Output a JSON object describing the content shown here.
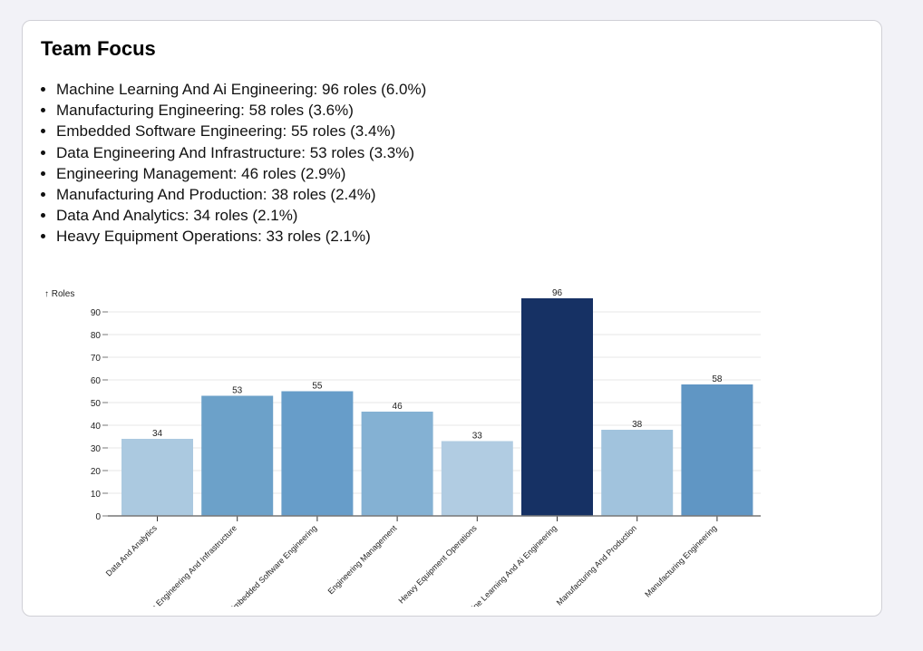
{
  "title": "Team Focus",
  "summary": [
    "Machine Learning And Ai Engineering: 96 roles (6.0%)",
    "Manufacturing Engineering: 58 roles (3.6%)",
    "Embedded Software Engineering: 55 roles (3.4%)",
    "Data Engineering And Infrastructure: 53 roles (3.3%)",
    "Engineering Management: 46 roles (2.9%)",
    "Manufacturing And Production: 38 roles (2.4%)",
    "Data And Analytics: 34 roles (2.1%)",
    "Heavy Equipment Operations: 33 roles (2.1%)"
  ],
  "chart_data": {
    "type": "bar",
    "ylabel": "↑ Roles",
    "ylim": [
      0,
      96
    ],
    "yticks": [
      0,
      10,
      20,
      30,
      40,
      50,
      60,
      70,
      80,
      90
    ],
    "grid": true,
    "categories": [
      "Data And Analytics",
      "Data Engineering And Infrastructure",
      "Embedded Software Engineering",
      "Engineering Management",
      "Heavy Equipment Operations",
      "Machine Learning And Ai Engineering",
      "Manufacturing And Production",
      "Manufacturing Engineering"
    ],
    "values": [
      34,
      53,
      55,
      46,
      33,
      96,
      38,
      58
    ],
    "colors": [
      "#abc9e0",
      "#6ca1c9",
      "#679dc9",
      "#84b1d3",
      "#b1cce2",
      "#163164",
      "#a1c3dd",
      "#6096c4"
    ]
  }
}
